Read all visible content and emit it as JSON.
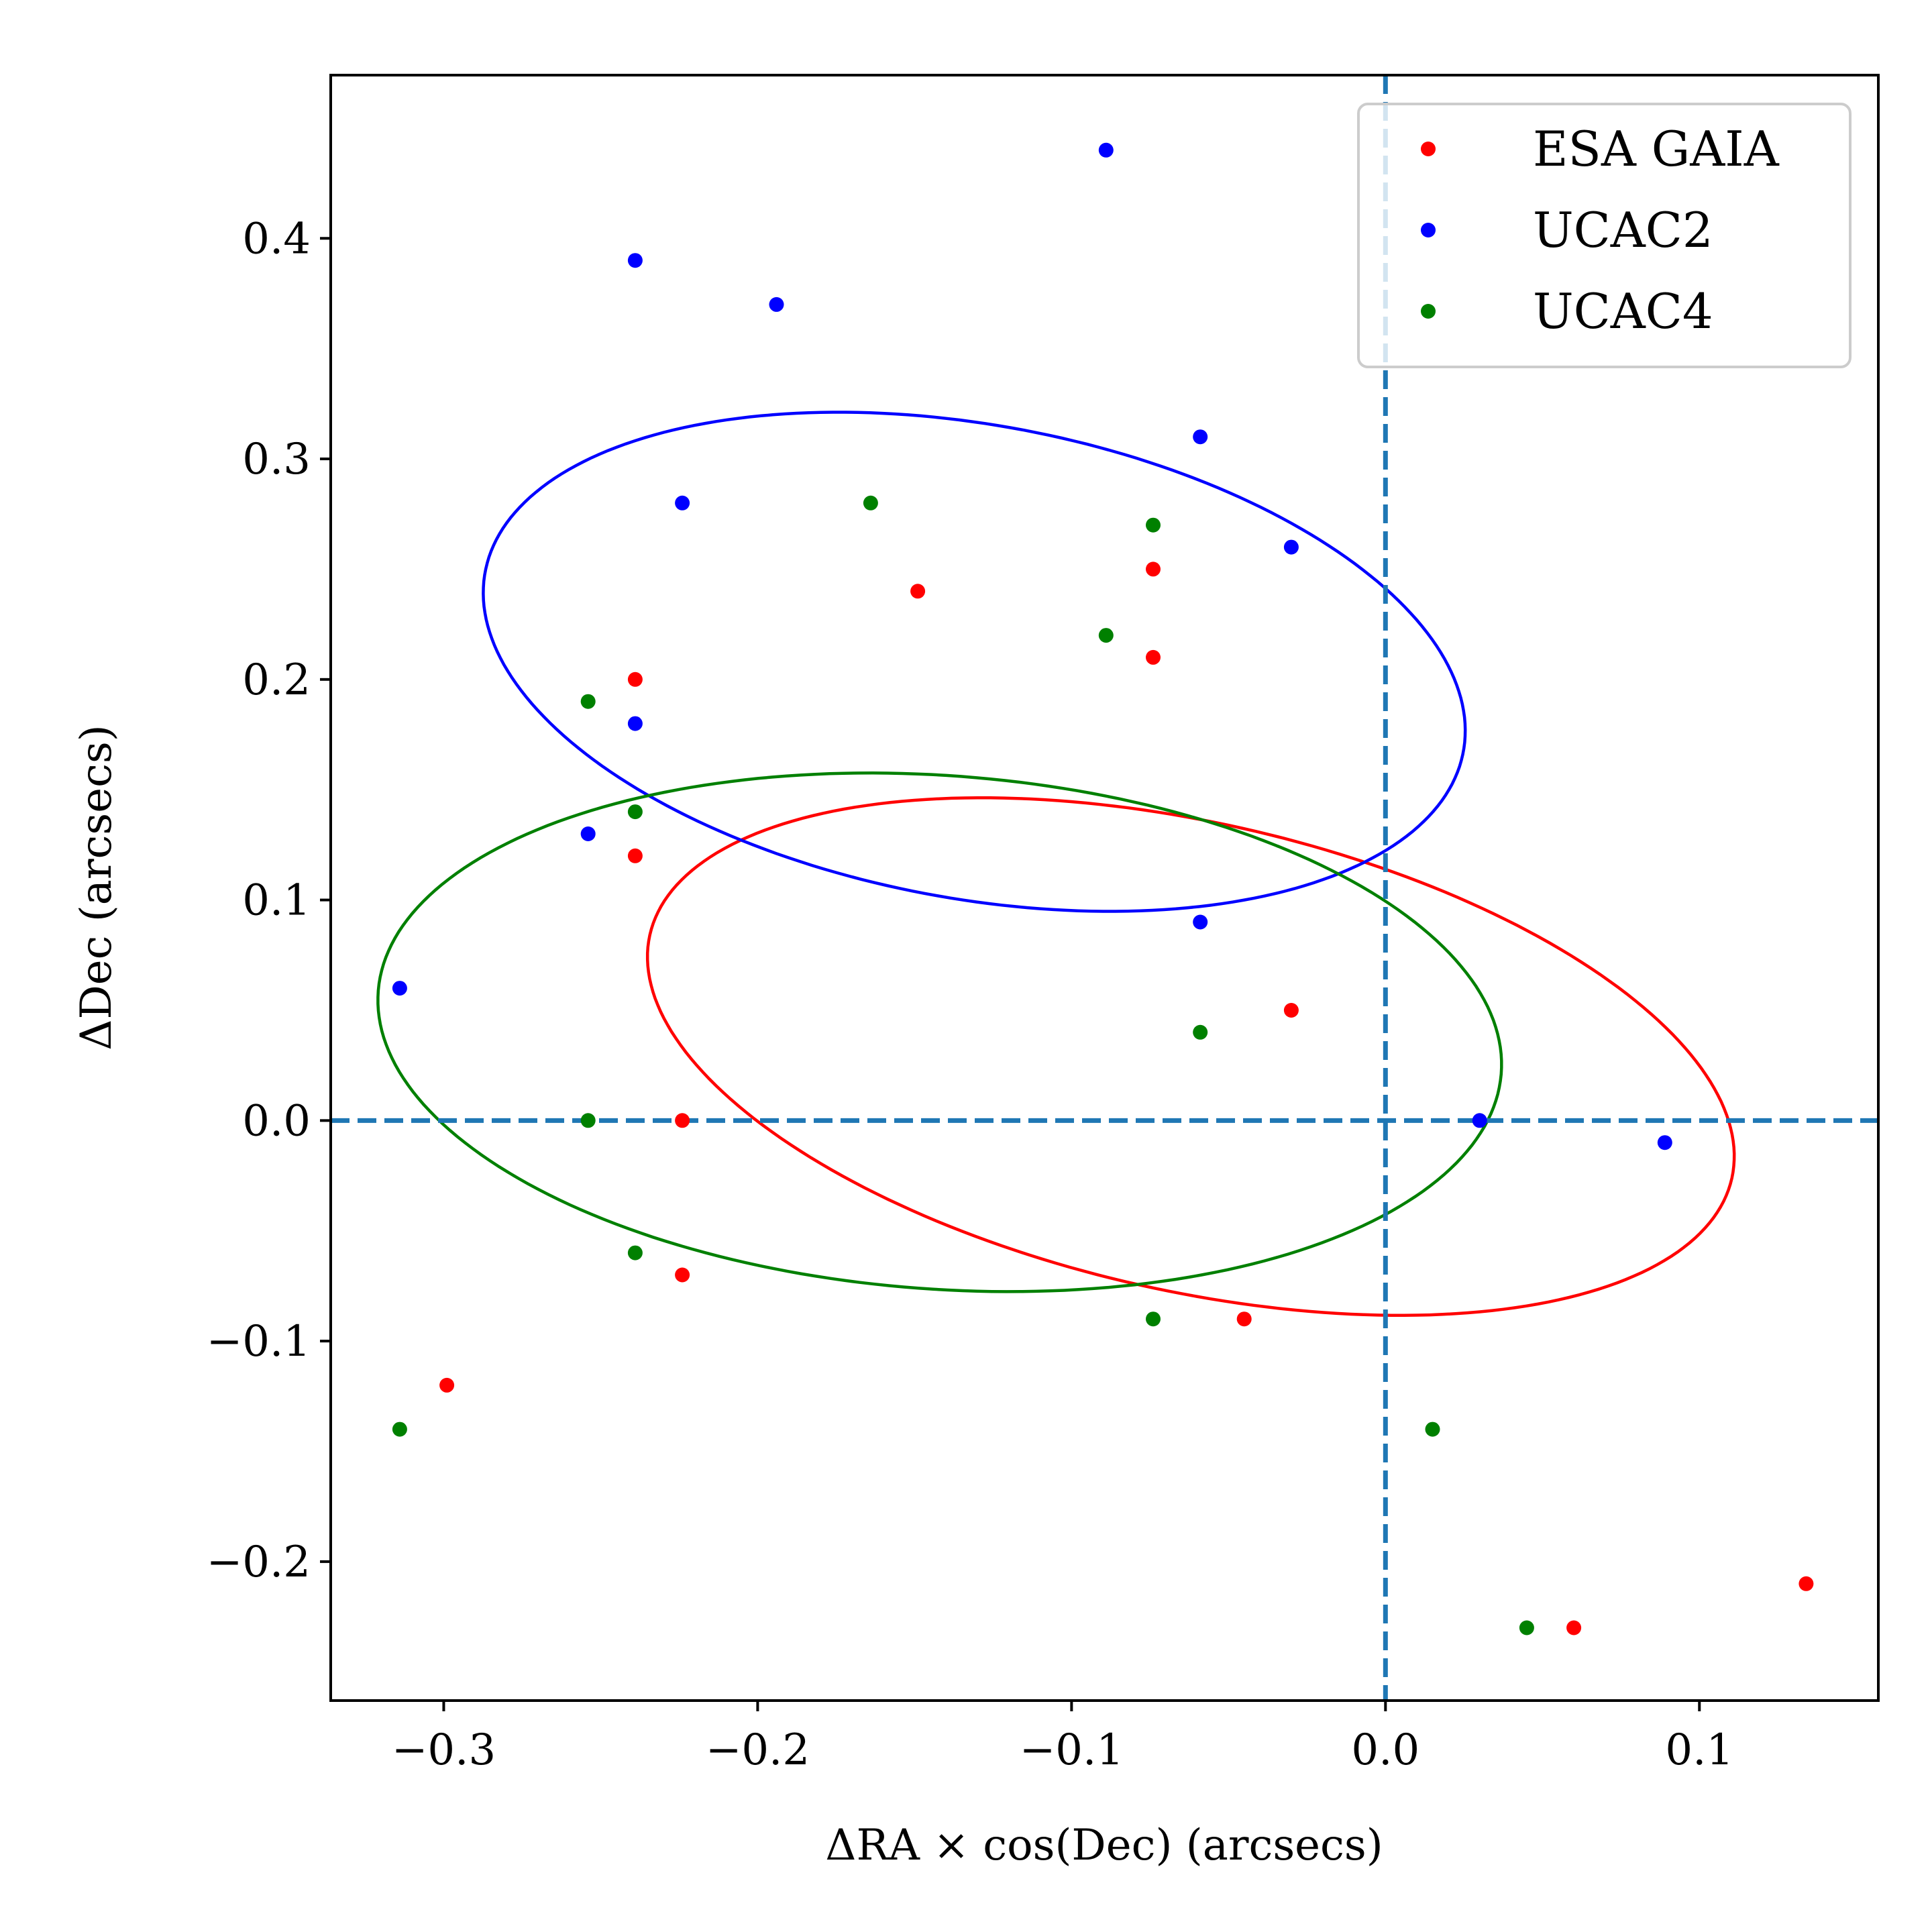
{
  "chart_data": {
    "type": "scatter",
    "title": "",
    "xlabel": "ΔRA × cos(Dec) (arcsecs)",
    "ylabel": "ΔDec (arcsecs)",
    "xlim": [
      -0.336,
      0.157
    ],
    "ylim": [
      -0.263,
      0.474
    ],
    "xticks": [
      -0.3,
      -0.2,
      -0.1,
      0.0,
      0.1
    ],
    "xtick_labels": [
      "−0.3",
      "−0.2",
      "−0.1",
      "0.0",
      "0.1"
    ],
    "yticks": [
      -0.2,
      -0.1,
      0.0,
      0.1,
      0.2,
      0.3,
      0.4
    ],
    "ytick_labels": [
      "−0.2",
      "−0.1",
      "0.0",
      "0.1",
      "0.2",
      "0.3",
      "0.4"
    ],
    "grid": false,
    "legend_position": "top-right",
    "reference_lines": {
      "x": 0.0,
      "y": 0.0,
      "color": "#1f77b4",
      "style": "dashed"
    },
    "series": [
      {
        "name": "ESA GAIA",
        "color": "#ff0000",
        "points": [
          [
            -0.239,
            0.2
          ],
          [
            -0.239,
            0.12
          ],
          [
            -0.224,
            0.0
          ],
          [
            -0.224,
            -0.07
          ],
          [
            -0.299,
            -0.12
          ],
          [
            -0.149,
            0.24
          ],
          [
            -0.074,
            0.25
          ],
          [
            -0.074,
            0.21
          ],
          [
            -0.03,
            0.05
          ],
          [
            -0.045,
            -0.09
          ],
          [
            0.06,
            -0.23
          ],
          [
            0.134,
            -0.21
          ]
        ],
        "ellipse": {
          "cx": -0.062,
          "cy": 0.029,
          "rx": 0.182,
          "ry": 0.103,
          "angle_deg": -22
        }
      },
      {
        "name": "UCAC2",
        "color": "#0000ff",
        "points": [
          [
            -0.089,
            0.44
          ],
          [
            -0.239,
            0.39
          ],
          [
            -0.194,
            0.37
          ],
          [
            -0.059,
            0.31
          ],
          [
            -0.224,
            0.28
          ],
          [
            -0.03,
            0.26
          ],
          [
            -0.239,
            0.18
          ],
          [
            -0.254,
            0.13
          ],
          [
            -0.059,
            0.09
          ],
          [
            -0.314,
            0.06
          ],
          [
            0.03,
            0.0
          ],
          [
            0.089,
            -0.01
          ]
        ],
        "ellipse": {
          "cx": -0.131,
          "cy": 0.208,
          "rx": 0.162,
          "ry": 0.105,
          "angle_deg": -20
        }
      },
      {
        "name": "UCAC4",
        "color": "#008000",
        "points": [
          [
            -0.164,
            0.28
          ],
          [
            -0.074,
            0.27
          ],
          [
            -0.089,
            0.22
          ],
          [
            -0.254,
            0.19
          ],
          [
            -0.239,
            0.14
          ],
          [
            -0.059,
            0.04
          ],
          [
            -0.254,
            0.0
          ],
          [
            -0.239,
            -0.06
          ],
          [
            -0.074,
            -0.09
          ],
          [
            -0.314,
            -0.14
          ],
          [
            0.015,
            -0.14
          ],
          [
            0.045,
            -0.23
          ]
        ],
        "ellipse": {
          "cx": -0.142,
          "cy": 0.04,
          "rx": 0.18,
          "ry": 0.116,
          "angle_deg": -8
        }
      }
    ]
  }
}
